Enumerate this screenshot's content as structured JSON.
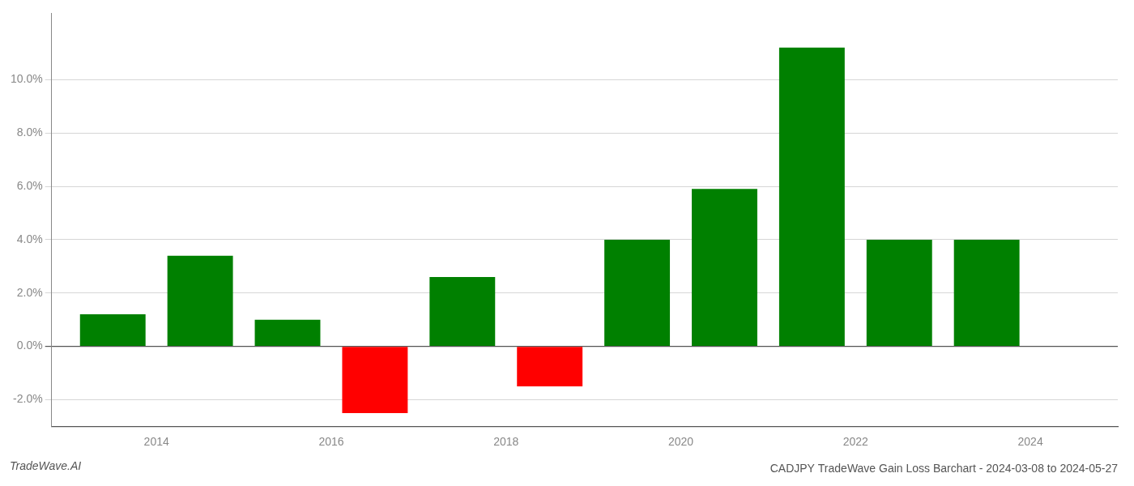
{
  "chart_data": {
    "type": "bar",
    "title": "CADJPY TradeWave Gain Loss Barchart - 2024-03-08 to 2024-05-27",
    "annotations": [
      "TradeWave.AI"
    ],
    "x": [
      2013.5,
      2014.5,
      2015.5,
      2016.5,
      2017.5,
      2018.5,
      2019.5,
      2020.5,
      2021.5,
      2022.5,
      2023.5
    ],
    "values": [
      1.2,
      3.4,
      1.0,
      -2.5,
      2.6,
      -1.5,
      4.0,
      5.9,
      11.2,
      4.0,
      4.0
    ],
    "colors": [
      "#008000",
      "#008000",
      "#008000",
      "#ff0000",
      "#008000",
      "#ff0000",
      "#008000",
      "#008000",
      "#008000",
      "#008000",
      "#008000"
    ],
    "xlim": [
      2012.8,
      2025.0
    ],
    "ylim": [
      -3.0,
      12.5
    ],
    "xticks": [
      2014,
      2016,
      2018,
      2020,
      2022,
      2024
    ],
    "yticks": [
      {
        "value": -2.0,
        "label": "-2.0%"
      },
      {
        "value": 0.0,
        "label": "0.0%"
      },
      {
        "value": 2.0,
        "label": "2.0%"
      },
      {
        "value": 4.0,
        "label": "4.0%"
      },
      {
        "value": 6.0,
        "label": "6.0%"
      },
      {
        "value": 8.0,
        "label": "8.0%"
      },
      {
        "value": 10.0,
        "label": "10.0%"
      }
    ],
    "grid": true
  }
}
